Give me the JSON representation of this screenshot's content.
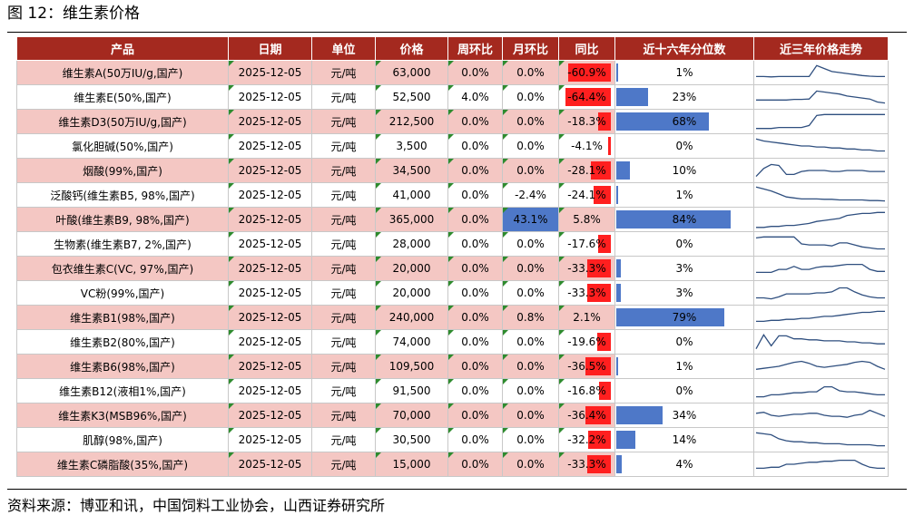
{
  "figure_title": "图 12：维生素价格",
  "source": "资料来源：博亚和讯，中国饲料工业协会，山西证券研究所",
  "columns": [
    "产品",
    "日期",
    "单位",
    "价格",
    "周环比",
    "月环比",
    "同比",
    "近十六年分位数",
    "近三年价格走势"
  ],
  "colors": {
    "header_bg": "#a4291f",
    "row_pink": "#f4c7c3",
    "neg_bar": "#ff1f1f",
    "pct_bar": "#4e78c8",
    "flag": "#2e8b2e"
  },
  "rows": [
    {
      "product": "维生素A(50万IU/g,国产)",
      "date": "2025-12-05",
      "unit": "元/吨",
      "price": "63,000",
      "wow": "0.0%",
      "mom": "0.0%",
      "yoy": "-60.9%",
      "yoy_value": -60.9,
      "percentile": "1%",
      "pct_value": 1,
      "trend": [
        0.3,
        0.3,
        0.28,
        0.3,
        0.3,
        0.3,
        0.3,
        0.3,
        0.85,
        0.7,
        0.55,
        0.5,
        0.45,
        0.4,
        0.35,
        0.32,
        0.3,
        0.3
      ]
    },
    {
      "product": "维生素E(50%,国产)",
      "date": "2025-12-05",
      "unit": "元/吨",
      "price": "52,500",
      "wow": "4.0%",
      "mom": "0.0%",
      "yoy": "-64.4%",
      "yoy_value": -64.4,
      "percentile": "23%",
      "pct_value": 23,
      "trend": [
        0.35,
        0.35,
        0.35,
        0.35,
        0.35,
        0.38,
        0.38,
        0.4,
        0.8,
        0.75,
        0.7,
        0.65,
        0.55,
        0.5,
        0.45,
        0.4,
        0.25,
        0.2
      ]
    },
    {
      "product": "维生素D3(50万IU/g,国产)",
      "date": "2025-12-05",
      "unit": "元/吨",
      "price": "212,500",
      "wow": "0.0%",
      "mom": "0.0%",
      "yoy": "-18.3%",
      "yoy_value": -18.3,
      "percentile": "68%",
      "pct_value": 68,
      "trend": [
        0.15,
        0.15,
        0.15,
        0.2,
        0.2,
        0.2,
        0.2,
        0.3,
        0.8,
        0.85,
        0.85,
        0.85,
        0.85,
        0.85,
        0.85,
        0.85,
        0.85,
        0.85
      ]
    },
    {
      "product": "氯化胆碱(50%,国产)",
      "date": "2025-12-05",
      "unit": "元/吨",
      "price": "3,500",
      "wow": "0.0%",
      "mom": "0.0%",
      "yoy": "-4.1%",
      "yoy_value": -4.1,
      "percentile": "0%",
      "pct_value": 0,
      "trend": [
        0.85,
        0.75,
        0.7,
        0.65,
        0.6,
        0.55,
        0.5,
        0.5,
        0.45,
        0.45,
        0.4,
        0.4,
        0.35,
        0.35,
        0.3,
        0.3,
        0.25,
        0.25
      ]
    },
    {
      "product": "烟酸(99%,国产)",
      "date": "2025-12-05",
      "unit": "元/吨",
      "price": "34,500",
      "wow": "0.0%",
      "mom": "0.0%",
      "yoy": "-28.1%",
      "yoy_value": -28.1,
      "percentile": "10%",
      "pct_value": 10,
      "trend": [
        0.2,
        0.6,
        0.8,
        0.75,
        0.3,
        0.3,
        0.45,
        0.5,
        0.5,
        0.5,
        0.45,
        0.45,
        0.5,
        0.5,
        0.5,
        0.45,
        0.45,
        0.45
      ]
    },
    {
      "product": "泛酸钙(维生素B5, 98%,国产)",
      "date": "2025-12-05",
      "unit": "元/吨",
      "price": "41,000",
      "wow": "0.0%",
      "mom": "-2.4%",
      "mom_value": -2.4,
      "yoy": "-24.1%",
      "yoy_value": -24.1,
      "percentile": "1%",
      "pct_value": 1,
      "trend": [
        0.9,
        0.8,
        0.7,
        0.55,
        0.4,
        0.35,
        0.3,
        0.3,
        0.3,
        0.28,
        0.28,
        0.25,
        0.25,
        0.25,
        0.25,
        0.22,
        0.22,
        0.2
      ]
    },
    {
      "product": "叶酸(维生素B9, 98%,国产)",
      "date": "2025-12-05",
      "unit": "元/吨",
      "price": "365,000",
      "wow": "0.0%",
      "mom": "43.1%",
      "mom_value": 43.1,
      "yoy": "5.8%",
      "yoy_value": 5.8,
      "percentile": "84%",
      "pct_value": 84,
      "trend": [
        0.1,
        0.1,
        0.15,
        0.15,
        0.2,
        0.2,
        0.25,
        0.3,
        0.4,
        0.45,
        0.5,
        0.55,
        0.7,
        0.75,
        0.8,
        0.8,
        0.85,
        0.85
      ]
    },
    {
      "product": "生物素(维生素B7, 2%,国产)",
      "date": "2025-12-05",
      "unit": "元/吨",
      "price": "28,000",
      "wow": "0.0%",
      "mom": "0.0%",
      "yoy": "-17.6%",
      "yoy_value": -17.6,
      "percentile": "0%",
      "pct_value": 0,
      "trend": [
        0.8,
        0.85,
        0.85,
        0.85,
        0.85,
        0.85,
        0.5,
        0.45,
        0.45,
        0.45,
        0.4,
        0.55,
        0.55,
        0.45,
        0.35,
        0.3,
        0.25,
        0.25
      ]
    },
    {
      "product": "包衣维生素C(VC, 97%,国产)",
      "date": "2025-12-05",
      "unit": "元/吨",
      "price": "20,000",
      "wow": "0.0%",
      "mom": "0.0%",
      "yoy": "-33.3%",
      "yoy_value": -33.3,
      "percentile": "3%",
      "pct_value": 3,
      "trend": [
        0.3,
        0.3,
        0.3,
        0.45,
        0.45,
        0.6,
        0.45,
        0.45,
        0.55,
        0.6,
        0.6,
        0.65,
        0.7,
        0.7,
        0.7,
        0.45,
        0.35,
        0.35
      ]
    },
    {
      "product": "VC粉(99%,国产)",
      "date": "2025-12-05",
      "unit": "元/吨",
      "price": "20,000",
      "wow": "0.0%",
      "mom": "0.0%",
      "yoy": "-33.3%",
      "yoy_value": -33.3,
      "percentile": "3%",
      "pct_value": 3,
      "trend": [
        0.25,
        0.25,
        0.2,
        0.3,
        0.45,
        0.45,
        0.45,
        0.45,
        0.5,
        0.5,
        0.55,
        0.75,
        0.75,
        0.55,
        0.4,
        0.3,
        0.25,
        0.25
      ]
    },
    {
      "product": "维生素B1(98%,国产)",
      "date": "2025-12-05",
      "unit": "元/吨",
      "price": "240,000",
      "wow": "0.0%",
      "mom": "0.8%",
      "mom_value": 0.8,
      "yoy": "2.1%",
      "yoy_value": 2.1,
      "percentile": "79%",
      "pct_value": 79,
      "trend": [
        0.3,
        0.3,
        0.35,
        0.35,
        0.4,
        0.4,
        0.45,
        0.45,
        0.5,
        0.55,
        0.55,
        0.6,
        0.65,
        0.7,
        0.75,
        0.75,
        0.8,
        0.8
      ]
    },
    {
      "product": "维生素B2(80%,国产)",
      "date": "2025-12-05",
      "unit": "元/吨",
      "price": "74,000",
      "wow": "0.0%",
      "mom": "0.0%",
      "yoy": "-19.6%",
      "yoy_value": -19.6,
      "percentile": "0%",
      "pct_value": 0,
      "trend": [
        0.15,
        0.85,
        0.3,
        0.8,
        0.8,
        0.65,
        0.65,
        0.6,
        0.6,
        0.55,
        0.55,
        0.55,
        0.5,
        0.5,
        0.45,
        0.45,
        0.4,
        0.4
      ]
    },
    {
      "product": "维生素B6(98%,国产)",
      "date": "2025-12-05",
      "unit": "元/吨",
      "price": "109,500",
      "wow": "0.0%",
      "mom": "0.0%",
      "yoy": "-36.5%",
      "yoy_value": -36.5,
      "percentile": "1%",
      "pct_value": 1,
      "trend": [
        0.35,
        0.4,
        0.45,
        0.5,
        0.6,
        0.7,
        0.75,
        0.65,
        0.5,
        0.45,
        0.5,
        0.55,
        0.6,
        0.7,
        0.75,
        0.7,
        0.5,
        0.35
      ]
    },
    {
      "product": "维生素B12(液相1%,国产)",
      "date": "2025-12-05",
      "unit": "元/吨",
      "price": "91,500",
      "wow": "0.0%",
      "mom": "0.0%",
      "yoy": "-16.8%",
      "yoy_value": -16.8,
      "percentile": "0%",
      "pct_value": 0,
      "trend": [
        0.2,
        0.2,
        0.3,
        0.3,
        0.35,
        0.4,
        0.4,
        0.45,
        0.45,
        0.7,
        0.7,
        0.5,
        0.45,
        0.45,
        0.4,
        0.35,
        0.3,
        0.3
      ]
    },
    {
      "product": "维生素K3(MSB96%,国产)",
      "date": "2025-12-05",
      "unit": "元/吨",
      "price": "70,000",
      "wow": "0.0%",
      "mom": "0.0%",
      "yoy": "-36.4%",
      "yoy_value": -36.4,
      "percentile": "34%",
      "pct_value": 34,
      "trend": [
        0.6,
        0.65,
        0.5,
        0.45,
        0.5,
        0.55,
        0.55,
        0.6,
        0.6,
        0.5,
        0.45,
        0.45,
        0.4,
        0.5,
        0.55,
        0.75,
        0.6,
        0.45
      ]
    },
    {
      "product": "肌醇(98%,国产)",
      "date": "2025-12-05",
      "unit": "元/吨",
      "price": "30,500",
      "wow": "0.0%",
      "mom": "0.0%",
      "yoy": "-32.2%",
      "yoy_value": -32.2,
      "percentile": "14%",
      "pct_value": 14,
      "trend": [
        0.85,
        0.8,
        0.75,
        0.55,
        0.45,
        0.4,
        0.4,
        0.35,
        0.35,
        0.3,
        0.3,
        0.3,
        0.25,
        0.25,
        0.25,
        0.25,
        0.2,
        0.2
      ]
    },
    {
      "product": "维生素C磷脂酸(35%,国产)",
      "date": "2025-12-05",
      "unit": "元/吨",
      "price": "15,000",
      "wow": "0.0%",
      "mom": "0.0%",
      "yoy": "-33.3%",
      "yoy_value": -33.3,
      "percentile": "4%",
      "pct_value": 4,
      "trend": [
        0.3,
        0.3,
        0.35,
        0.35,
        0.5,
        0.5,
        0.55,
        0.6,
        0.6,
        0.65,
        0.65,
        0.7,
        0.7,
        0.7,
        0.5,
        0.35,
        0.3,
        0.3
      ]
    }
  ]
}
